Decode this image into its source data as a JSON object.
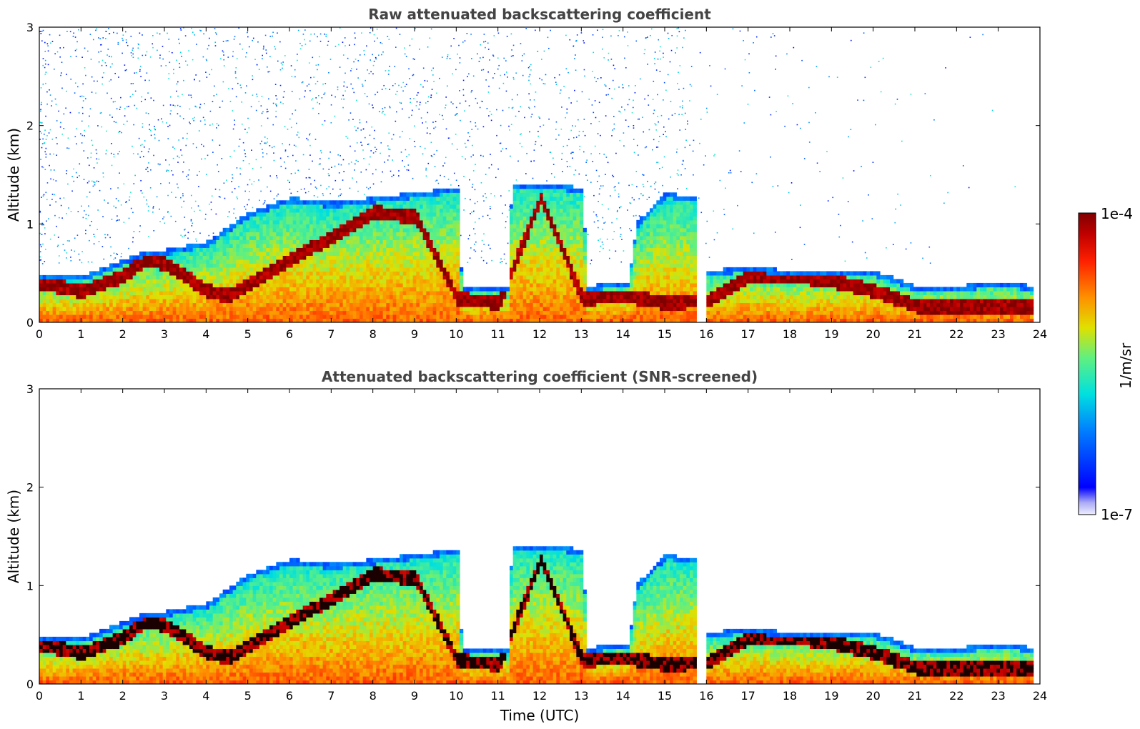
{
  "chart_data": [
    {
      "type": "heatmap",
      "title": "Raw attenuated backscattering coefficient",
      "xlabel": "",
      "ylabel": "Altitude (km)",
      "xlim": [
        0,
        24
      ],
      "ylim": [
        0,
        3
      ],
      "x_ticks": [
        "0",
        "1",
        "2",
        "3",
        "4",
        "5",
        "6",
        "7",
        "8",
        "9",
        "10",
        "11",
        "12",
        "13",
        "14",
        "15",
        "16",
        "17",
        "18",
        "19",
        "20",
        "21",
        "22",
        "23",
        "24"
      ],
      "y_ticks": [
        "0",
        "1",
        "2",
        "3"
      ],
      "screened": false
    },
    {
      "type": "heatmap",
      "title": "Attenuated backscattering coefficient (SNR-screened)",
      "xlabel": "Time (UTC)",
      "ylabel": "Altitude (km)",
      "xlim": [
        0,
        24
      ],
      "ylim": [
        0,
        3
      ],
      "x_ticks": [
        "0",
        "1",
        "2",
        "3",
        "4",
        "5",
        "6",
        "7",
        "8",
        "9",
        "10",
        "11",
        "12",
        "13",
        "14",
        "15",
        "16",
        "17",
        "18",
        "19",
        "20",
        "21",
        "22",
        "23",
        "24"
      ],
      "y_ticks": [
        "0",
        "1",
        "2",
        "3"
      ],
      "screened": true
    }
  ],
  "colorbar": {
    "label": "1/m/sr",
    "max_label": "1e-4",
    "min_label": "1e-7",
    "scale": "log",
    "colormap": "jet"
  },
  "features": {
    "boundary_layer_top_km": [
      [
        0,
        0.45
      ],
      [
        1,
        0.45
      ],
      [
        2,
        0.62
      ],
      [
        2.5,
        0.7
      ],
      [
        3,
        0.72
      ],
      [
        4,
        0.8
      ],
      [
        5,
        1.1
      ],
      [
        6,
        1.25
      ],
      [
        7,
        1.2
      ],
      [
        8,
        1.25
      ],
      [
        9,
        1.3
      ],
      [
        10,
        1.35
      ],
      [
        10.1,
        0.35
      ],
      [
        11.2,
        0.35
      ],
      [
        11.3,
        1.4
      ],
      [
        12,
        1.4
      ],
      [
        13,
        1.35
      ],
      [
        13.1,
        0.35
      ],
      [
        14.1,
        0.4
      ],
      [
        14.3,
        1.0
      ],
      [
        15,
        1.3
      ],
      [
        15.7,
        1.25
      ],
      [
        16,
        0.5
      ],
      [
        17,
        0.55
      ],
      [
        18,
        0.5
      ],
      [
        19,
        0.5
      ],
      [
        20,
        0.5
      ],
      [
        21,
        0.35
      ],
      [
        22,
        0.35
      ],
      [
        23,
        0.4
      ],
      [
        23.8,
        0.35
      ]
    ],
    "aerosol_layer_km": [
      [
        0,
        0.38
      ],
      [
        1,
        0.3
      ],
      [
        2,
        0.45
      ],
      [
        2.5,
        0.62
      ],
      [
        3,
        0.58
      ],
      [
        4,
        0.3
      ],
      [
        4.5,
        0.25
      ],
      [
        8,
        1.1
      ],
      [
        9,
        1.05
      ],
      [
        10,
        0.22
      ],
      [
        11,
        0.18
      ],
      [
        12,
        1.25
      ],
      [
        13,
        0.22
      ],
      [
        14,
        0.25
      ],
      [
        15,
        0.18
      ],
      [
        16,
        0.2
      ],
      [
        17,
        0.45
      ],
      [
        18,
        0.45
      ],
      [
        19,
        0.4
      ],
      [
        20,
        0.3
      ],
      [
        21,
        0.15
      ],
      [
        23.8,
        0.15
      ]
    ],
    "data_gap_utc": [
      15.7,
      16.0
    ]
  }
}
